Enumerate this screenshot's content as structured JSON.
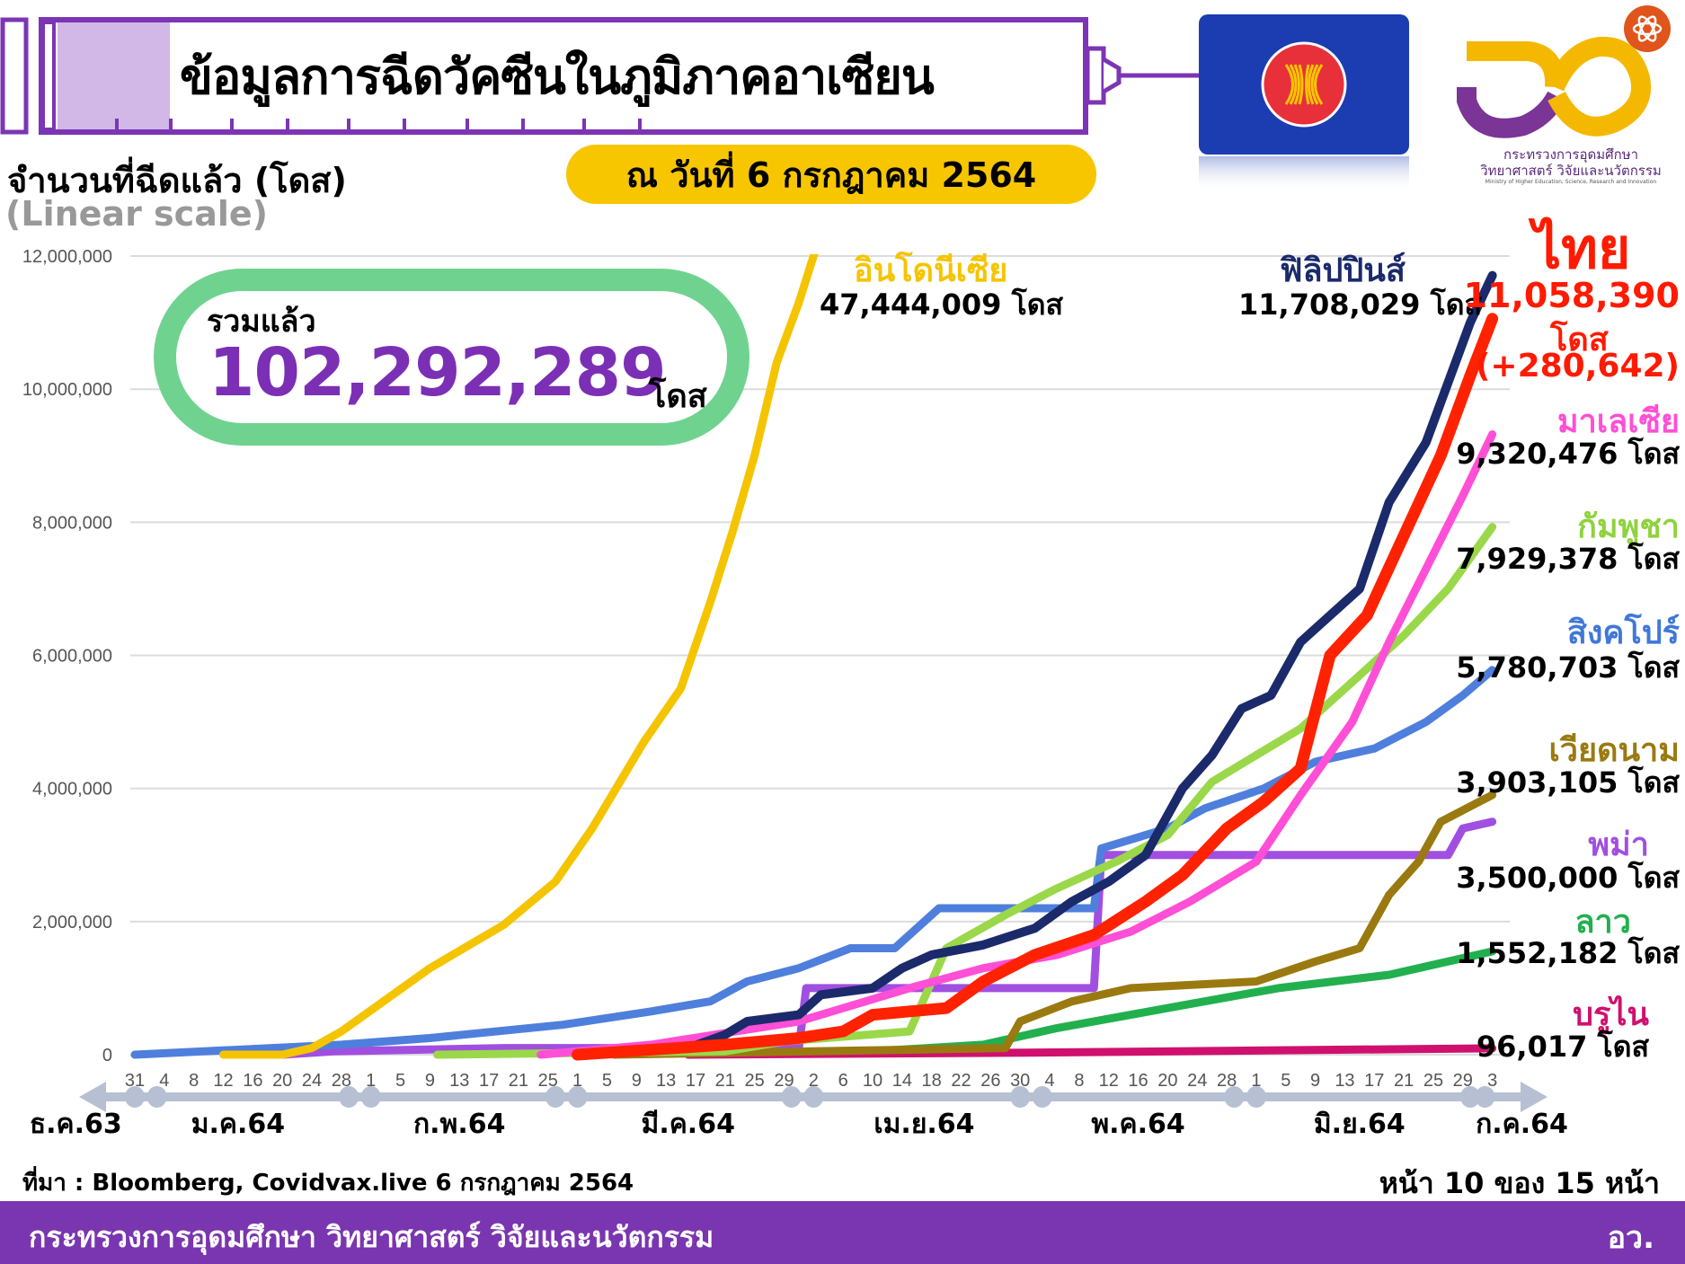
{
  "header": {
    "title": "ข้อมูลการฉีดวัคซีนในภูมิภาคอาเซียน",
    "date": "ณ วันที่ 6 กรกฎาคม 2564"
  },
  "logo": {
    "line1": "กระทรวงการอุดมศึกษา",
    "line2": "วิทยาศาสตร์ วิจัยและนวัตกรรม",
    "line3": "Ministry of Higher Education, Science, Research and Innovation"
  },
  "total": {
    "label": "รวมแล้ว",
    "value": "102,292,289",
    "unit": "โดส"
  },
  "labels": {
    "indonesia": {
      "name": "อินโดนีเซีย",
      "value": "47,444,009 โดส"
    },
    "philippines": {
      "name": "ฟิลิปปินส์",
      "value": "11,708,029 โดส"
    },
    "thailand": {
      "name": "ไทย",
      "value": "11,058,390",
      "unit": "โดส",
      "change": "(+280,642)"
    },
    "malaysia": {
      "name": "มาเลเซีย",
      "value": "9,320,476 โดส"
    },
    "cambodia": {
      "name": "กัมพูชา",
      "value": "7,929,378 โดส"
    },
    "singapore": {
      "name": "สิงคโปร์",
      "value": "5,780,703 โดส"
    },
    "vietnam": {
      "name": "เวียดนาม",
      "value": "3,903,105 โดส"
    },
    "myanmar": {
      "name": "พม่า",
      "value": "3,500,000 โดส"
    },
    "laos": {
      "name": "ลาว",
      "value": "1,552,182 โดส"
    },
    "brunei": {
      "name": "บรูไน",
      "value": "96,017 โดส"
    }
  },
  "footer": {
    "source": "ที่มา : Bloomberg, Covidvax.live 6 กรกฎาคม 2564",
    "page": "หน้า 10 ของ 15 หน้า",
    "ministry": "กระทรวงการอุดมศึกษา วิทยาศาสตร์ วิจัยและนวัตกรรม",
    "abbr": "อว."
  },
  "chart_data": {
    "type": "line",
    "ylabel": "จำนวนที่ฉีดแล้ว (โดส)",
    "yscale_note": "(Linear scale)",
    "yscale": "linear",
    "ylim": [
      0,
      12000000
    ],
    "yticks": [
      0,
      2000000,
      4000000,
      6000000,
      8000000,
      10000000,
      12000000
    ],
    "ytick_labels": [
      "0",
      "2,000,000",
      "4,000,000",
      "6,000,000",
      "8,000,000",
      "10,000,000",
      "12,000,000"
    ],
    "grid": true,
    "xlim": [
      "2020-12-31",
      "2021-07-03"
    ],
    "x_ticks": [
      "2020-12-31",
      "2021-01-04",
      "2021-01-08",
      "2021-01-12",
      "2021-01-16",
      "2021-01-20",
      "2021-01-24",
      "2021-01-28",
      "2021-02-01",
      "2021-02-05",
      "2021-02-09",
      "2021-02-13",
      "2021-02-17",
      "2021-02-21",
      "2021-02-25",
      "2021-03-01",
      "2021-03-05",
      "2021-03-09",
      "2021-03-13",
      "2021-03-17",
      "2021-03-21",
      "2021-03-25",
      "2021-03-29",
      "2021-04-02",
      "2021-04-06",
      "2021-04-10",
      "2021-04-14",
      "2021-04-18",
      "2021-04-22",
      "2021-04-26",
      "2021-04-30",
      "2021-05-04",
      "2021-05-08",
      "2021-05-12",
      "2021-05-16",
      "2021-05-20",
      "2021-05-24",
      "2021-05-28",
      "2021-06-01",
      "2021-06-05",
      "2021-06-09",
      "2021-06-13",
      "2021-06-17",
      "2021-06-21",
      "2021-06-25",
      "2021-06-29",
      "2021-07-03"
    ],
    "x_tick_labels": [
      "31",
      "4",
      "8",
      "12",
      "16",
      "20",
      "24",
      "28",
      "1",
      "5",
      "9",
      "13",
      "17",
      "21",
      "25",
      "1",
      "5",
      "9",
      "13",
      "17",
      "21",
      "25",
      "29",
      "2",
      "6",
      "10",
      "14",
      "18",
      "22",
      "26",
      "30",
      "4",
      "8",
      "12",
      "16",
      "20",
      "24",
      "28",
      "1",
      "5",
      "9",
      "13",
      "17",
      "21",
      "25",
      "29",
      "3"
    ],
    "months": [
      {
        "label": "ธ.ค.63",
        "date": "2020-12-23"
      },
      {
        "label": "ม.ค.64",
        "date": "2021-01-14"
      },
      {
        "label": "ก.พ.64",
        "date": "2021-02-13"
      },
      {
        "label": "มี.ค.64",
        "date": "2021-03-16"
      },
      {
        "label": "เม.ย.64",
        "date": "2021-04-17"
      },
      {
        "label": "พ.ค.64",
        "date": "2021-05-16"
      },
      {
        "label": "มิ.ย.64",
        "date": "2021-06-15"
      },
      {
        "label": "ก.ค.64",
        "date": "2021-07-07"
      }
    ],
    "month_boundaries": [
      "2020-12-31",
      "2021-01-03",
      "2021-01-29",
      "2021-02-01",
      "2021-02-26",
      "2021-03-01",
      "2021-03-30",
      "2021-04-02",
      "2021-04-30",
      "2021-05-03",
      "2021-05-29",
      "2021-06-01",
      "2021-06-30",
      "2021-07-02"
    ],
    "series": [
      {
        "key": "laos",
        "name": "ลาว",
        "color": "#22b04f",
        "width": 9,
        "points": [
          [
            "2021-03-01",
            0
          ],
          [
            "2021-04-10",
            0.05
          ],
          [
            "2021-04-25",
            0.15
          ],
          [
            "2021-05-05",
            0.4
          ],
          [
            "2021-05-20",
            0.7
          ],
          [
            "2021-06-04",
            1.0
          ],
          [
            "2021-06-19",
            1.2
          ],
          [
            "2021-07-03",
            1.552182
          ]
        ]
      },
      {
        "key": "brunei",
        "name": "บรูไน",
        "color": "#d0106e",
        "width": 9,
        "points": [
          [
            "2021-03-16",
            0
          ],
          [
            "2021-05-01",
            0.03
          ],
          [
            "2021-07-03",
            0.096017
          ]
        ]
      },
      {
        "key": "myanmar",
        "name": "พม่า",
        "color": "#a14fe0",
        "width": 9,
        "points": [
          [
            "2021-01-20",
            0
          ],
          [
            "2021-01-27",
            0.05
          ],
          [
            "2021-02-19",
            0.1
          ],
          [
            "2021-03-31",
            0.1
          ],
          [
            "2021-04-01",
            1.0
          ],
          [
            "2021-05-10",
            1.0
          ],
          [
            "2021-05-11",
            3.0
          ],
          [
            "2021-06-27",
            3.0
          ],
          [
            "2021-06-29",
            3.4
          ],
          [
            "2021-07-03",
            3.5
          ]
        ]
      },
      {
        "key": "vietnam",
        "name": "เวียดนาม",
        "color": "#9a7a10",
        "width": 9,
        "points": [
          [
            "2021-03-06",
            0
          ],
          [
            "2021-04-28",
            0.1
          ],
          [
            "2021-04-30",
            0.5
          ],
          [
            "2021-05-07",
            0.8
          ],
          [
            "2021-05-15",
            1.0
          ],
          [
            "2021-06-01",
            1.1
          ],
          [
            "2021-06-09",
            1.4
          ],
          [
            "2021-06-15",
            1.6
          ],
          [
            "2021-06-19",
            2.4
          ],
          [
            "2021-06-23",
            2.9
          ],
          [
            "2021-06-26",
            3.5
          ],
          [
            "2021-07-03",
            3.903105
          ]
        ]
      },
      {
        "key": "singapore",
        "name": "สิงคโปร์",
        "color": "#4f7fdc",
        "width": 9,
        "points": [
          [
            "2020-12-31",
            0
          ],
          [
            "2021-01-28",
            0.15
          ],
          [
            "2021-02-09",
            0.25
          ],
          [
            "2021-02-27",
            0.45
          ],
          [
            "2021-03-11",
            0.65
          ],
          [
            "2021-03-19",
            0.8
          ],
          [
            "2021-03-24",
            1.1
          ],
          [
            "2021-03-31",
            1.3
          ],
          [
            "2021-04-07",
            1.6
          ],
          [
            "2021-04-13",
            1.6
          ],
          [
            "2021-04-19",
            2.2
          ],
          [
            "2021-05-10",
            2.2
          ],
          [
            "2021-05-11",
            3.1
          ],
          [
            "2021-05-20",
            3.4
          ],
          [
            "2021-05-25",
            3.7
          ],
          [
            "2021-06-02",
            4.0
          ],
          [
            "2021-06-09",
            4.4
          ],
          [
            "2021-06-17",
            4.6
          ],
          [
            "2021-06-24",
            5.0
          ],
          [
            "2021-06-29",
            5.4
          ],
          [
            "2021-07-03",
            5.780703
          ]
        ]
      },
      {
        "key": "cambodia",
        "name": "กัมพูชา",
        "color": "#9ad84a",
        "width": 9,
        "points": [
          [
            "2021-02-10",
            0
          ],
          [
            "2021-03-21",
            0.05
          ],
          [
            "2021-03-29",
            0.2
          ],
          [
            "2021-04-15",
            0.35
          ],
          [
            "2021-04-20",
            1.6
          ],
          [
            "2021-04-28",
            2.1
          ],
          [
            "2021-05-05",
            2.5
          ],
          [
            "2021-05-13",
            2.9
          ],
          [
            "2021-05-20",
            3.3
          ],
          [
            "2021-05-26",
            4.1
          ],
          [
            "2021-06-01",
            4.5
          ],
          [
            "2021-06-07",
            4.9
          ],
          [
            "2021-06-14",
            5.6
          ],
          [
            "2021-06-21",
            6.3
          ],
          [
            "2021-06-27",
            7.0
          ],
          [
            "2021-07-03",
            7.929378
          ]
        ]
      },
      {
        "key": "malaysia",
        "name": "มาเลเซีย",
        "color": "#ff4fd6",
        "width": 9,
        "points": [
          [
            "2021-02-24",
            0
          ],
          [
            "2021-03-11",
            0.15
          ],
          [
            "2021-03-31",
            0.5
          ],
          [
            "2021-04-15",
            1.0
          ],
          [
            "2021-04-25",
            1.3
          ],
          [
            "2021-05-05",
            1.5
          ],
          [
            "2021-05-15",
            1.85
          ],
          [
            "2021-05-23",
            2.3
          ],
          [
            "2021-06-01",
            2.9
          ],
          [
            "2021-06-07",
            3.9
          ],
          [
            "2021-06-14",
            5.0
          ],
          [
            "2021-06-19",
            6.2
          ],
          [
            "2021-06-24",
            7.3
          ],
          [
            "2021-06-29",
            8.4
          ],
          [
            "2021-07-03",
            9.320476
          ]
        ]
      },
      {
        "key": "indonesia",
        "name": "อินโดนีเซีย",
        "color": "#f5c400",
        "width": 9,
        "points": [
          [
            "2021-01-12",
            0
          ],
          [
            "2021-01-20",
            0
          ],
          [
            "2021-01-24",
            0.1
          ],
          [
            "2021-01-28",
            0.35
          ],
          [
            "2021-02-09",
            1.3
          ],
          [
            "2021-02-19",
            1.95
          ],
          [
            "2021-02-26",
            2.6
          ],
          [
            "2021-03-03",
            3.4
          ],
          [
            "2021-03-10",
            4.7
          ],
          [
            "2021-03-15",
            5.5
          ],
          [
            "2021-03-19",
            6.8
          ],
          [
            "2021-03-22",
            7.85
          ],
          [
            "2021-03-25",
            9.0
          ],
          [
            "2021-03-28",
            10.4
          ],
          [
            "2021-03-31",
            11.3
          ],
          [
            "2021-04-02",
            12.0
          ],
          [
            "2021-04-04",
            12.6
          ]
        ]
      },
      {
        "key": "philippines",
        "name": "ฟิลิปปินส์",
        "color": "#1b2a6b",
        "width": 10,
        "points": [
          [
            "2021-03-01",
            0
          ],
          [
            "2021-03-16",
            0.1
          ],
          [
            "2021-03-21",
            0.3
          ],
          [
            "2021-03-24",
            0.5
          ],
          [
            "2021-03-31",
            0.6
          ],
          [
            "2021-04-03",
            0.9
          ],
          [
            "2021-04-10",
            1.0
          ],
          [
            "2021-04-14",
            1.3
          ],
          [
            "2021-04-18",
            1.5
          ],
          [
            "2021-04-25",
            1.65
          ],
          [
            "2021-05-02",
            1.9
          ],
          [
            "2021-05-07",
            2.3
          ],
          [
            "2021-05-12",
            2.6
          ],
          [
            "2021-05-17",
            3.0
          ],
          [
            "2021-05-22",
            4.0
          ],
          [
            "2021-05-26",
            4.5
          ],
          [
            "2021-05-30",
            5.2
          ],
          [
            "2021-06-03",
            5.4
          ],
          [
            "2021-06-07",
            6.2
          ],
          [
            "2021-06-11",
            6.6
          ],
          [
            "2021-06-15",
            7.0
          ],
          [
            "2021-06-19",
            8.3
          ],
          [
            "2021-06-24",
            9.2
          ],
          [
            "2021-06-27",
            10.1
          ],
          [
            "2021-06-30",
            11.0
          ],
          [
            "2021-07-03",
            11.708029
          ]
        ]
      },
      {
        "key": "thailand",
        "name": "ไทย",
        "color": "#ff2200",
        "width": 13,
        "points": [
          [
            "2021-03-01",
            0
          ],
          [
            "2021-03-21",
            0.15
          ],
          [
            "2021-03-31",
            0.25
          ],
          [
            "2021-04-06",
            0.35
          ],
          [
            "2021-04-10",
            0.6
          ],
          [
            "2021-04-20",
            0.7
          ],
          [
            "2021-04-25",
            1.1
          ],
          [
            "2021-05-02",
            1.5
          ],
          [
            "2021-05-10",
            1.8
          ],
          [
            "2021-05-17",
            2.3
          ],
          [
            "2021-05-22",
            2.7
          ],
          [
            "2021-05-28",
            3.4
          ],
          [
            "2021-06-02",
            3.8
          ],
          [
            "2021-06-07",
            4.3
          ],
          [
            "2021-06-11",
            6.0
          ],
          [
            "2021-06-16",
            6.6
          ],
          [
            "2021-06-21",
            7.8
          ],
          [
            "2021-06-26",
            9.0
          ],
          [
            "2021-06-30",
            10.2
          ],
          [
            "2021-07-03",
            11.05839
          ]
        ]
      }
    ],
    "series_value_unit": "millions of doses"
  }
}
